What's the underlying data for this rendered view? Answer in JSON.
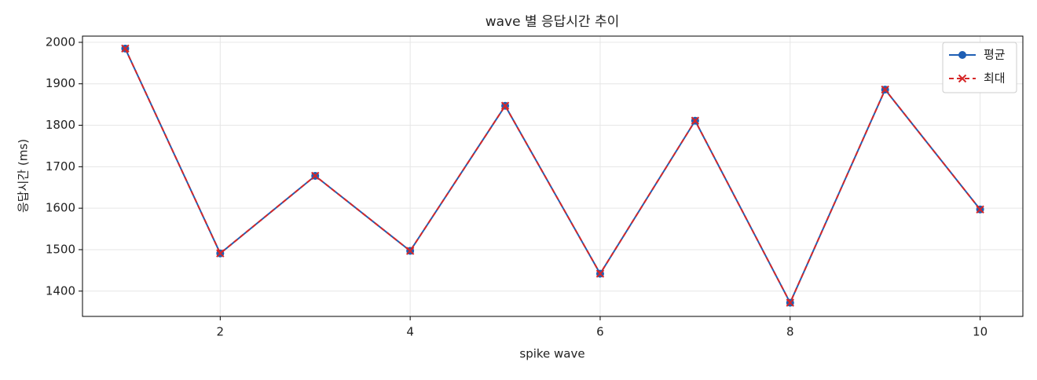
{
  "chart_data": {
    "type": "line",
    "title": "wave 별 응답시간 추이",
    "x_label": "spike wave",
    "y_label": "응답시간 (ms)",
    "x": [
      1,
      2,
      3,
      4,
      5,
      6,
      7,
      8,
      9,
      10
    ],
    "series": [
      {
        "name": "평균",
        "color": "#1f5fb4",
        "marker": "circle",
        "dash": false,
        "values": [
          1985,
          1491,
          1678,
          1497,
          1847,
          1442,
          1811,
          1372,
          1886,
          1597
        ]
      },
      {
        "name": "최대",
        "color": "#d62728",
        "marker": "x",
        "dash": true,
        "values": [
          1985,
          1491,
          1678,
          1497,
          1847,
          1442,
          1811,
          1372,
          1886,
          1597
        ]
      }
    ],
    "xlim": [
      0.55,
      10.45
    ],
    "xticks": [
      2,
      4,
      6,
      8,
      10
    ],
    "ylim": [
      1339,
      2015
    ],
    "yticks": [
      1400,
      1500,
      1600,
      1700,
      1800,
      1900,
      2000
    ],
    "grid": true,
    "legend": "upper right"
  }
}
